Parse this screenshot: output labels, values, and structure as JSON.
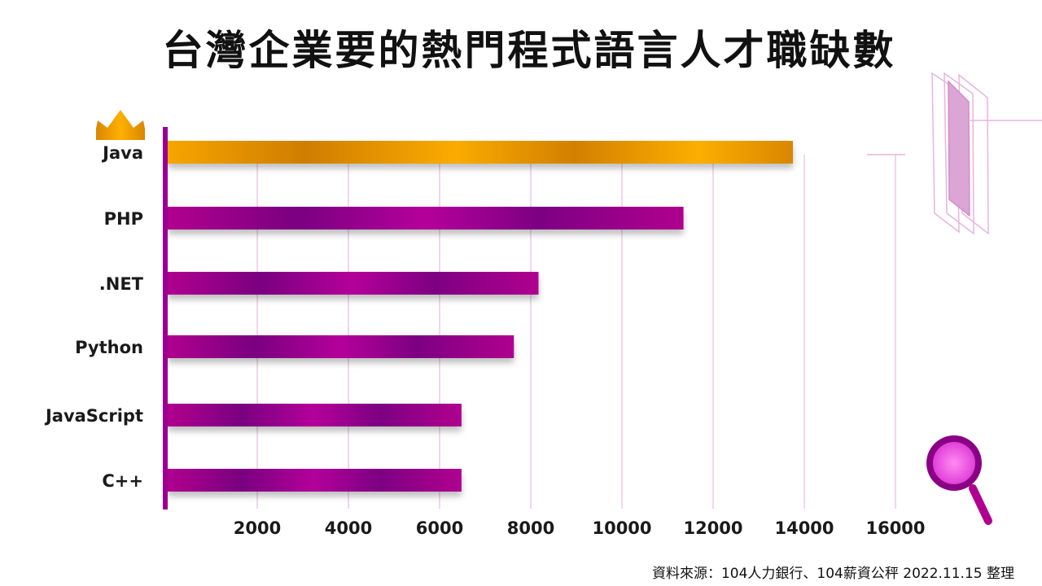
{
  "chart_data": {
    "type": "bar",
    "orientation": "horizontal",
    "title": "台灣企業要的熱門程式語言人才職缺數",
    "categories": [
      "Java",
      "PHP",
      ".NET",
      "Python",
      "JavaScript",
      "C++"
    ],
    "values": [
      13750,
      11350,
      8170,
      7630,
      6480,
      6480
    ],
    "xticks": [
      2000,
      4000,
      6000,
      8000,
      10000,
      12000,
      14000,
      16000
    ],
    "xlim": [
      0,
      16000
    ],
    "grid": "vertical",
    "highlight": "Java",
    "colors": {
      "highlight": "#f5a300",
      "highlight_dark": "#cc7a00",
      "bar": "#b0008f",
      "bar_dark": "#7a0080",
      "axis": "#9a0090"
    }
  },
  "footer": {
    "source": "資料來源：104人力銀行、104薪資公秤 2022.11.15 整理"
  }
}
